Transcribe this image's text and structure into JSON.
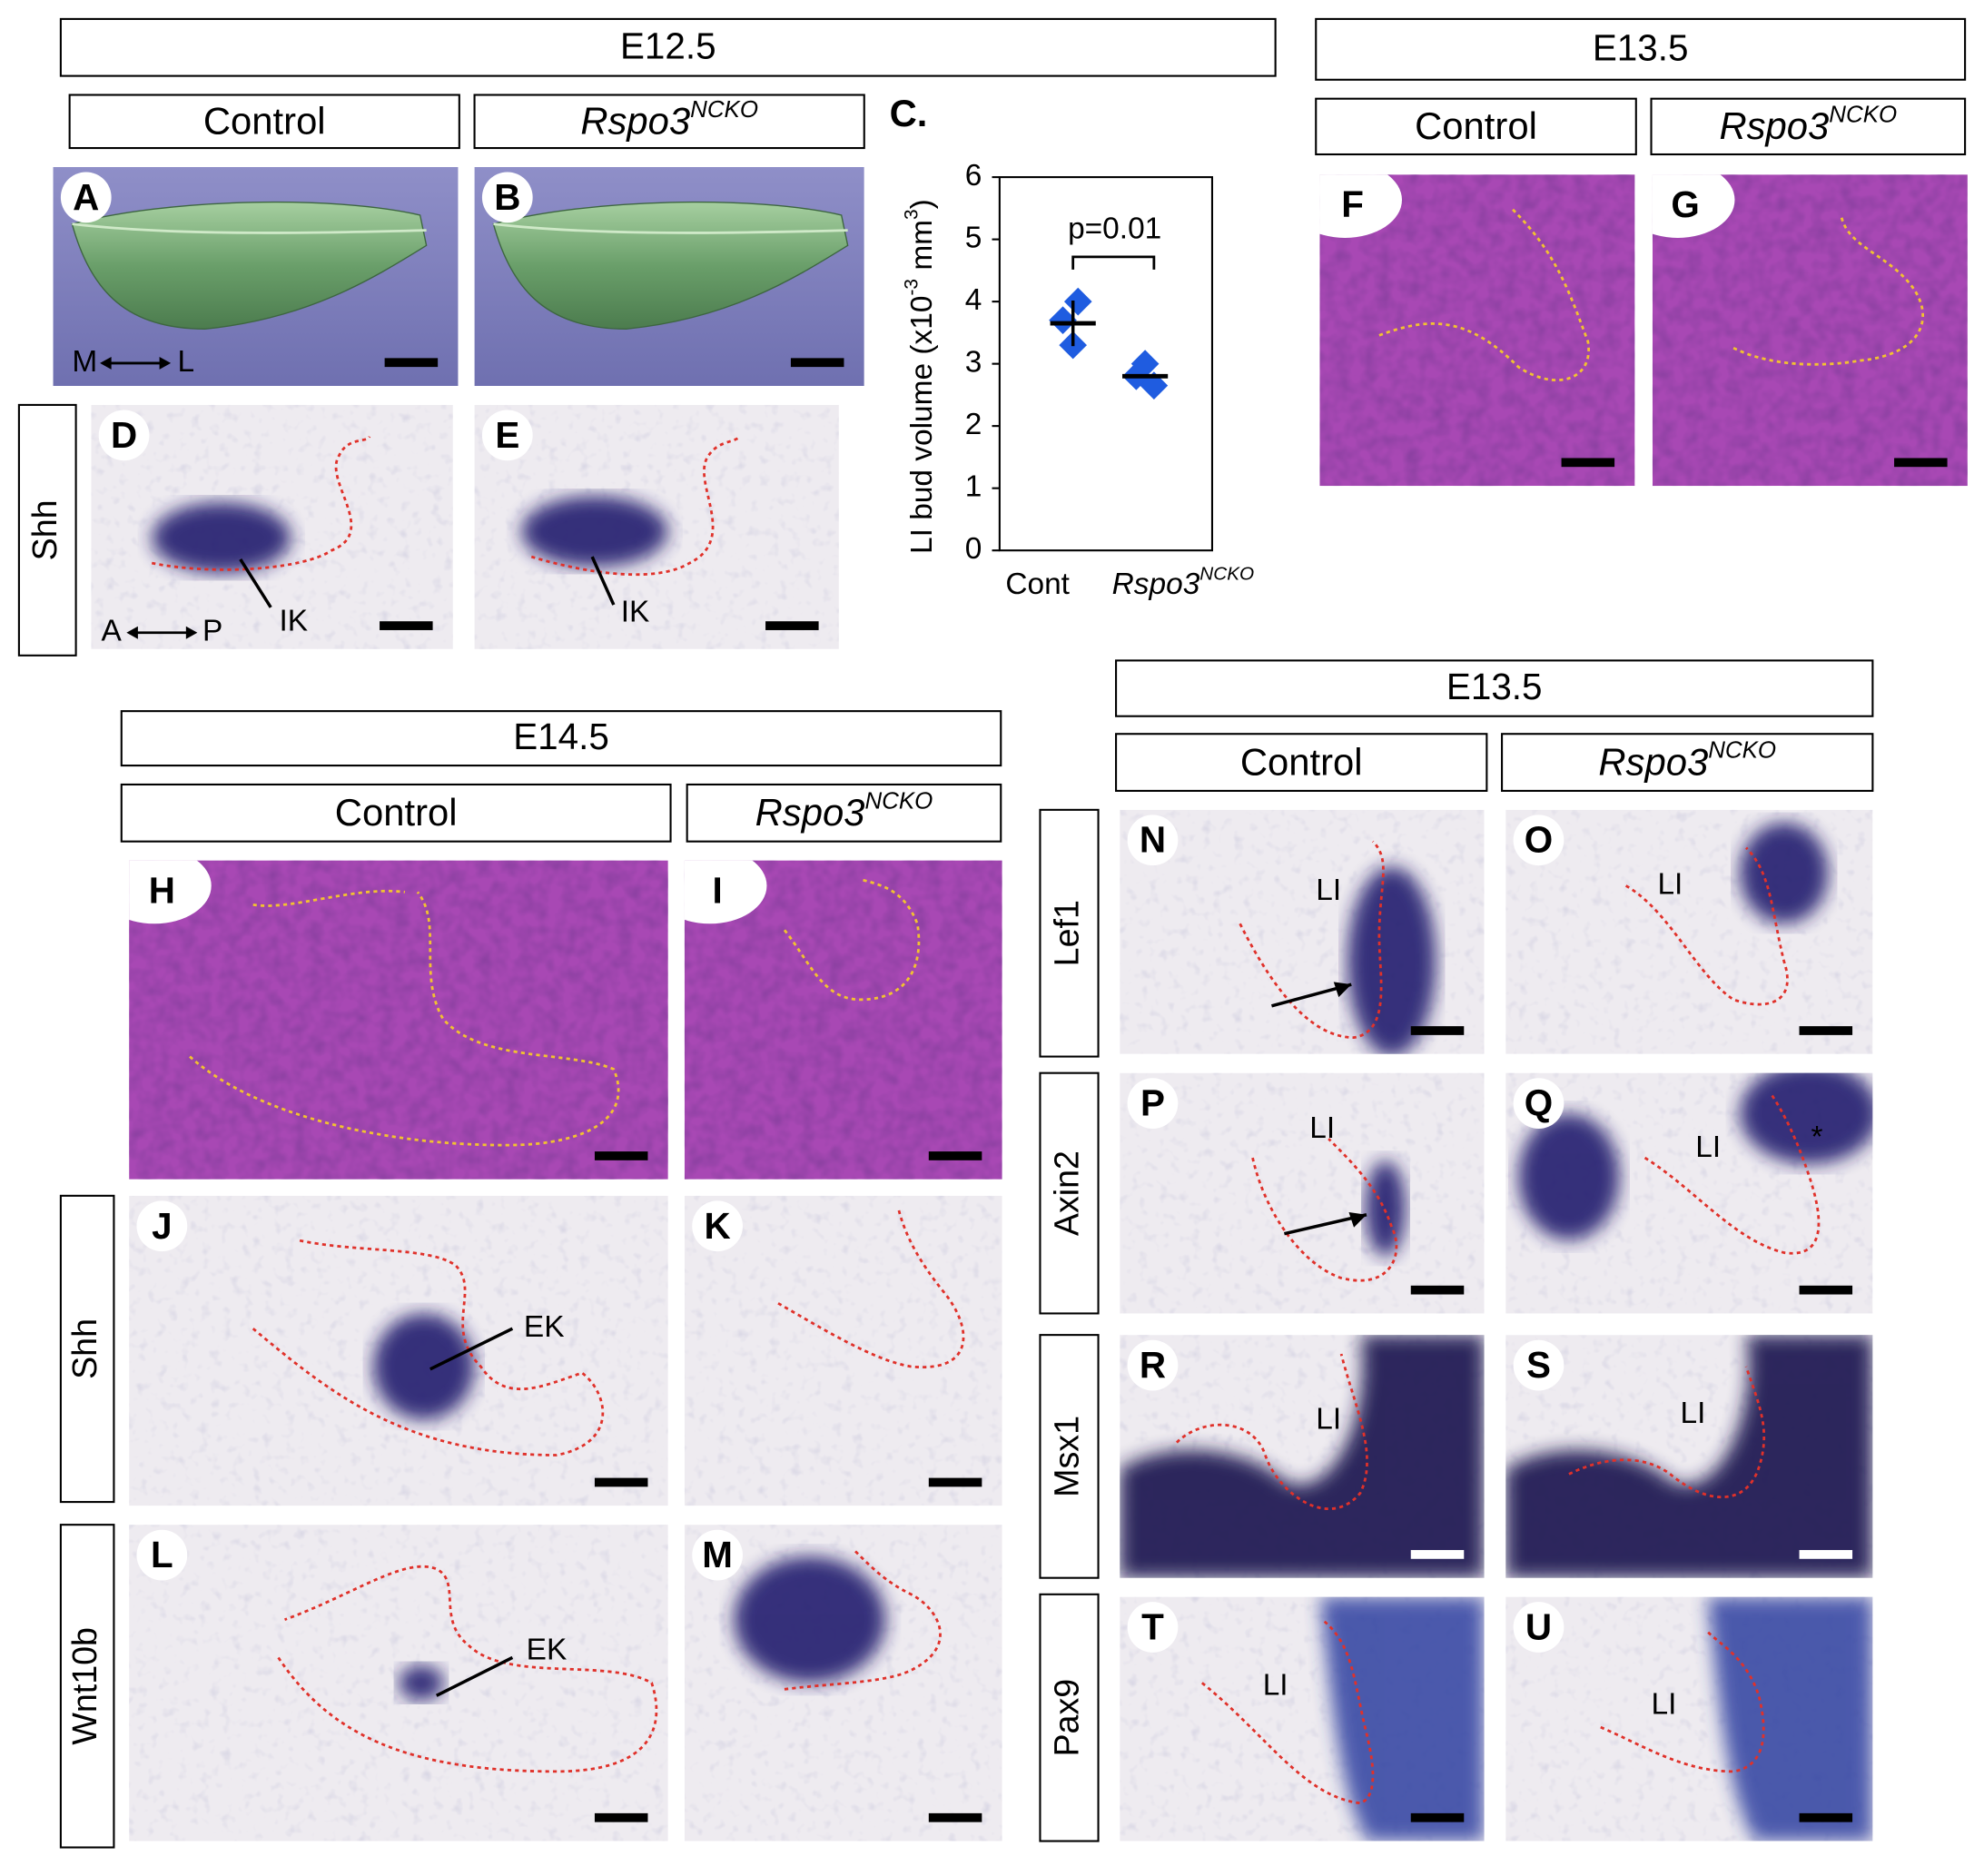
{
  "sections": [
    {
      "stage": "E12.5",
      "columns": [
        {
          "base": "Control"
        },
        {
          "base": "Rspo3",
          "sup": "NCKO"
        }
      ]
    },
    {
      "stage": "E13.5",
      "columns": [
        {
          "base": "Control"
        },
        {
          "base": "Rspo3",
          "sup": "NCKO"
        }
      ]
    },
    {
      "stage": "E14.5",
      "columns": [
        {
          "base": "Control"
        },
        {
          "base": "Rspo3",
          "sup": "NCKO"
        }
      ]
    },
    {
      "stage": "E13.5",
      "columns": [
        {
          "base": "Control"
        },
        {
          "base": "Rspo3",
          "sup": "NCKO"
        }
      ]
    }
  ],
  "row_labels": [
    "Shh",
    "Shh",
    "Wnt10b",
    "Lef1",
    "Axin2",
    "Msx1",
    "Pax9"
  ],
  "panels": [
    {
      "letter": "A",
      "annotations": [
        "M",
        "L"
      ]
    },
    {
      "letter": "B"
    },
    {
      "letter": "D",
      "annotations": [
        "IK",
        "A",
        "P"
      ]
    },
    {
      "letter": "E",
      "annotations": [
        "IK"
      ]
    },
    {
      "letter": "F"
    },
    {
      "letter": "G"
    },
    {
      "letter": "H"
    },
    {
      "letter": "I"
    },
    {
      "letter": "J",
      "annotations": [
        "EK"
      ]
    },
    {
      "letter": "K"
    },
    {
      "letter": "L",
      "annotations": [
        "EK"
      ]
    },
    {
      "letter": "M"
    },
    {
      "letter": "N",
      "annotations": [
        "LI"
      ]
    },
    {
      "letter": "O",
      "annotations": [
        "LI"
      ]
    },
    {
      "letter": "P",
      "annotations": [
        "LI"
      ]
    },
    {
      "letter": "Q",
      "annotations": [
        "LI",
        "*"
      ]
    },
    {
      "letter": "R",
      "annotations": [
        "LI"
      ]
    },
    {
      "letter": "S",
      "annotations": [
        "LI"
      ]
    },
    {
      "letter": "T",
      "annotations": [
        "LI"
      ]
    },
    {
      "letter": "U",
      "annotations": [
        "LI"
      ]
    }
  ],
  "chart": {
    "type": "scatter",
    "label": "C.",
    "ylabel": {
      "parts": [
        "LI bud volume (x10",
        "-3",
        " mm",
        "3",
        ")"
      ]
    },
    "x_labels": [
      {
        "base": "Cont"
      },
      {
        "base": "Rspo3",
        "sup": "NCKO"
      }
    ],
    "groups": [
      {
        "values": [
          4.0,
          3.7,
          3.3
        ],
        "mean": 3.65
      },
      {
        "values": [
          3.0,
          2.8,
          2.65
        ],
        "mean": 2.8
      }
    ],
    "color": "#1f5ce0",
    "ylim": [
      0,
      6
    ],
    "yticks": [
      0,
      1,
      2,
      3,
      4,
      5,
      6
    ],
    "annotation": "p=0.01"
  }
}
